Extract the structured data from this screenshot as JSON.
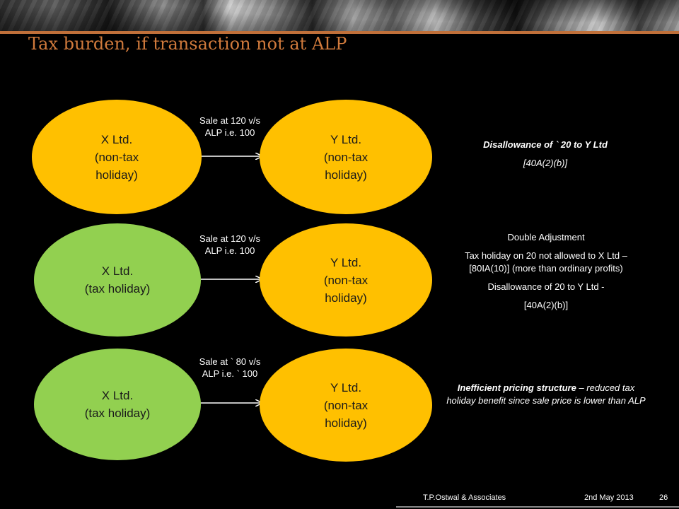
{
  "slide": {
    "title": "Tax burden, if transaction not at ALP"
  },
  "rows": [
    {
      "left": {
        "line1": "X Ltd.",
        "line2": "(non-tax",
        "line3": "holiday)"
      },
      "right": {
        "line1": "Y Ltd.",
        "line2": "(non-tax",
        "line3": "holiday)"
      },
      "flow": {
        "line1": "Sale at  120 v/s",
        "line2": "ALP i.e.  100"
      },
      "note": {
        "line1": "Disallowance of ` 20 to Y Ltd",
        "line2": "[40A(2)(b)]"
      }
    },
    {
      "left": {
        "line1": "X Ltd.",
        "line2": "(tax holiday)"
      },
      "right": {
        "line1": "Y Ltd.",
        "line2": "(non-tax",
        "line3": "holiday)"
      },
      "flow": {
        "line1": "Sale at 120 v/s",
        "line2": "ALP i.e. 100"
      },
      "note": {
        "heading": "Double Adjustment",
        "para1": "Tax holiday on 20 not allowed to X Ltd – [80IA(10)] (more than ordinary profits)",
        "para2": "Disallowance of 20 to Y Ltd -",
        "para3": "[40A(2)(b)]"
      }
    },
    {
      "left": {
        "line1": "X Ltd.",
        "line2": "(tax holiday)"
      },
      "right": {
        "line1": "Y Ltd.",
        "line2": "(non-tax",
        "line3": "holiday)"
      },
      "flow": {
        "line1": "Sale at ` 80 v/s",
        "line2": "ALP i.e. ` 100"
      },
      "note": {
        "bold": "Inefficient pricing structure",
        "rest": " – reduced tax holiday benefit  since sale price is lower than ALP"
      }
    }
  ],
  "footer": {
    "firm": "T.P.Ostwal & Associates",
    "date": "2nd May 2013",
    "page": "26"
  },
  "colors": {
    "orange": "#ffc000",
    "green": "#92d050",
    "title": "#d07a3c",
    "accent_line": "#c0703a"
  }
}
